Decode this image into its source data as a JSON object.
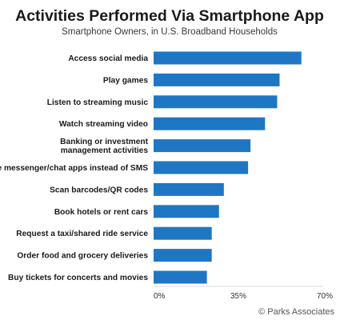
{
  "chart_data": {
    "type": "bar",
    "orientation": "horizontal",
    "title": "Activities Performed Via Smartphone App",
    "subtitle": "Smartphone Owners, in U.S. Broadband Households",
    "categories": [
      "Access social media",
      "Play games",
      "Listen to streaming music",
      "Watch streaming video",
      "Banking or investment\nmanagement activities",
      "Use messenger/chat apps instead of SMS",
      "Scan barcodes/QR codes",
      "Book hotels or rent cars",
      "Request a taxi/shared ride service",
      "Order food and grocery deliveries",
      "Buy tickets for concerts and movies"
    ],
    "values": [
      61,
      52,
      51,
      46,
      40,
      39,
      29,
      27,
      24,
      24,
      22
    ],
    "xlim": [
      0,
      70
    ],
    "x_ticks": [
      0,
      35,
      70
    ],
    "x_tick_labels": [
      "0%",
      "35%",
      "70%"
    ],
    "xlabel": "",
    "ylabel": "",
    "grid": false,
    "legend": "none",
    "bar_color": "#1f77c4"
  },
  "source": "© Parks Associates"
}
